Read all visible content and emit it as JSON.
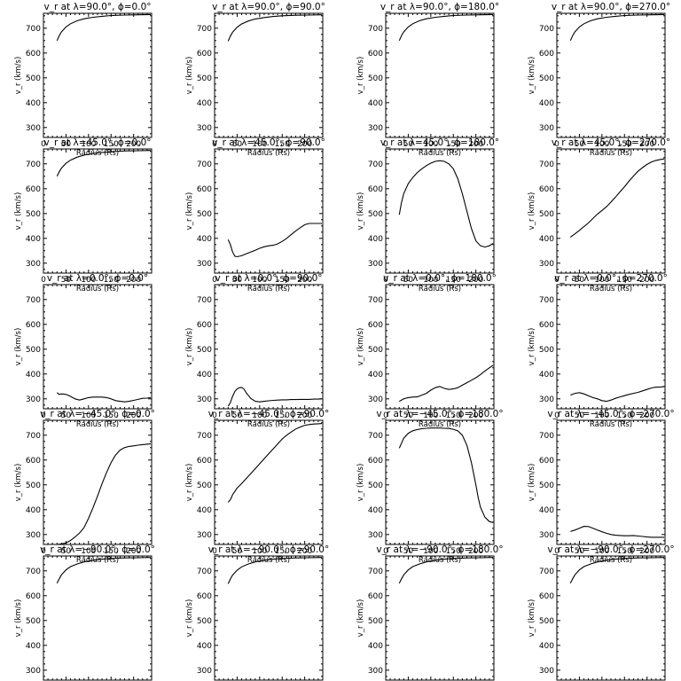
{
  "panel_axes": {
    "xlabel": "Radius (Rs)",
    "ylabel": "v_r (km/s)",
    "xlim": [
      0,
      240
    ],
    "ylim": [
      260,
      760
    ],
    "xticks": [
      0,
      50,
      100,
      150,
      200
    ],
    "yticks": [
      300,
      400,
      500,
      600,
      700
    ]
  },
  "chart_data": [
    {
      "type": "line",
      "title": "v_r at λ=90.0°, ϕ=0.0°",
      "xlabel": "Radius (Rs)",
      "ylabel": "v_r (km/s)",
      "xlim": [
        0,
        240
      ],
      "ylim": [
        260,
        760
      ],
      "series": [
        {
          "x": [
            30,
            35,
            40,
            50,
            60,
            75,
            90,
            110,
            130,
            150,
            180,
            210,
            238
          ],
          "y": [
            650,
            670,
            685,
            705,
            718,
            730,
            738,
            744,
            748,
            751,
            753,
            754,
            755
          ]
        }
      ]
    },
    {
      "type": "line",
      "title": "v_r at λ=90.0°, ϕ=90.0°",
      "xlabel": "Radius (Rs)",
      "ylabel": "v_r (km/s)",
      "xlim": [
        0,
        240
      ],
      "ylim": [
        260,
        760
      ],
      "series": [
        {
          "x": [
            30,
            35,
            40,
            50,
            60,
            75,
            90,
            110,
            130,
            150,
            180,
            210,
            238
          ],
          "y": [
            648,
            668,
            684,
            704,
            717,
            729,
            737,
            743,
            747,
            750,
            752,
            753,
            754
          ]
        }
      ]
    },
    {
      "type": "line",
      "title": "v_r at λ=90.0°, ϕ=180.0°",
      "xlabel": "Radius (Rs)",
      "ylabel": "v_r (km/s)",
      "xlim": [
        0,
        240
      ],
      "ylim": [
        260,
        760
      ],
      "series": [
        {
          "x": [
            30,
            35,
            40,
            50,
            60,
            75,
            90,
            110,
            130,
            150,
            180,
            210,
            238
          ],
          "y": [
            650,
            670,
            685,
            705,
            718,
            730,
            738,
            744,
            748,
            751,
            753,
            754,
            755
          ]
        }
      ]
    },
    {
      "type": "line",
      "title": "v_r at λ=90.0°, ϕ=270.0°",
      "xlabel": "Radius (Rs)",
      "ylabel": "v_r (km/s)",
      "xlim": [
        0,
        240
      ],
      "ylim": [
        260,
        760
      ],
      "series": [
        {
          "x": [
            30,
            35,
            40,
            50,
            60,
            75,
            90,
            110,
            130,
            150,
            180,
            210,
            238
          ],
          "y": [
            650,
            670,
            685,
            705,
            718,
            730,
            738,
            744,
            748,
            751,
            753,
            754,
            755
          ]
        }
      ]
    },
    {
      "type": "line",
      "title": "v_r at λ=45.0°, ϕ=0.0°",
      "xlabel": "Radius (Rs)",
      "ylabel": "v_r (km/s)",
      "xlim": [
        0,
        240
      ],
      "ylim": [
        260,
        760
      ],
      "series": [
        {
          "x": [
            30,
            35,
            40,
            50,
            60,
            75,
            90,
            110,
            130,
            150,
            180,
            210,
            238
          ],
          "y": [
            650,
            668,
            683,
            702,
            715,
            727,
            735,
            742,
            746,
            749,
            752,
            753,
            754
          ]
        }
      ]
    },
    {
      "type": "line",
      "title": "v_r at λ=45.0°, ϕ=90.0°",
      "xlabel": "Radius (Rs)",
      "ylabel": "v_r (km/s)",
      "xlim": [
        0,
        240
      ],
      "ylim": [
        260,
        760
      ],
      "series": [
        {
          "x": [
            30,
            35,
            40,
            45,
            50,
            60,
            70,
            80,
            90,
            100,
            110,
            120,
            130,
            140,
            150,
            160,
            170,
            180,
            190,
            200,
            210,
            220,
            238
          ],
          "y": [
            395,
            375,
            345,
            328,
            326,
            330,
            338,
            345,
            352,
            360,
            366,
            370,
            372,
            378,
            388,
            400,
            415,
            430,
            443,
            455,
            460,
            460,
            460
          ]
        }
      ]
    },
    {
      "type": "line",
      "title": "v_r at λ=45.0°, ϕ=180.0°",
      "xlabel": "Radius (Rs)",
      "ylabel": "v_r (km/s)",
      "xlim": [
        0,
        240
      ],
      "ylim": [
        260,
        760
      ],
      "series": [
        {
          "x": [
            30,
            35,
            40,
            50,
            60,
            70,
            80,
            90,
            100,
            110,
            120,
            130,
            140,
            150,
            160,
            170,
            180,
            190,
            200,
            210,
            220,
            230,
            238
          ],
          "y": [
            495,
            545,
            580,
            620,
            645,
            665,
            680,
            693,
            703,
            710,
            713,
            710,
            700,
            680,
            640,
            580,
            510,
            440,
            390,
            370,
            365,
            370,
            380
          ]
        }
      ]
    },
    {
      "type": "line",
      "title": "v_r at λ=45.0°, ϕ=270.0°",
      "xlabel": "Radius (Rs)",
      "ylabel": "v_r (km/s)",
      "xlim": [
        0,
        240
      ],
      "ylim": [
        260,
        760
      ],
      "series": [
        {
          "x": [
            30,
            40,
            50,
            60,
            70,
            80,
            90,
            100,
            110,
            120,
            130,
            140,
            150,
            160,
            170,
            180,
            190,
            200,
            210,
            220,
            230,
            238
          ],
          "y": [
            405,
            418,
            432,
            447,
            462,
            480,
            498,
            512,
            527,
            546,
            566,
            587,
            608,
            630,
            651,
            670,
            685,
            698,
            708,
            714,
            718,
            720
          ]
        }
      ]
    },
    {
      "type": "line",
      "title": "v_r at λ=0.0°, ϕ=0.0°",
      "xlabel": "Radius (Rs)",
      "ylabel": "v_r (km/s)",
      "xlim": [
        0,
        240
      ],
      "ylim": [
        260,
        760
      ],
      "series": [
        {
          "x": [
            30,
            35,
            40,
            50,
            60,
            70,
            80,
            90,
            100,
            110,
            120,
            130,
            140,
            150,
            160,
            170,
            180,
            190,
            200,
            210,
            220,
            230,
            238
          ],
          "y": [
            325,
            318,
            320,
            318,
            310,
            300,
            295,
            300,
            305,
            307,
            307,
            307,
            305,
            300,
            293,
            290,
            288,
            290,
            294,
            298,
            302,
            303,
            305
          ]
        }
      ]
    },
    {
      "type": "line",
      "title": "v_r at λ=0.0°, ϕ=90.0°",
      "xlabel": "Radius (Rs)",
      "ylabel": "v_r (km/s)",
      "xlim": [
        0,
        240
      ],
      "ylim": [
        260,
        760
      ],
      "series": [
        {
          "x": [
            30,
            35,
            40,
            45,
            50,
            55,
            60,
            65,
            70,
            80,
            90,
            100,
            110,
            120,
            130,
            140,
            150,
            160,
            170,
            180,
            190,
            200,
            210,
            220,
            230,
            238
          ],
          "y": [
            270,
            285,
            310,
            330,
            340,
            345,
            346,
            340,
            325,
            302,
            290,
            288,
            290,
            292,
            294,
            295,
            296,
            296,
            297,
            297,
            298,
            298,
            298,
            299,
            299,
            300
          ]
        }
      ]
    },
    {
      "type": "line",
      "title": "v_r at λ=0.0°, ϕ=180.0°",
      "xlabel": "Radius (Rs)",
      "ylabel": "v_r (km/s)",
      "xlim": [
        0,
        240
      ],
      "ylim": [
        260,
        760
      ],
      "series": [
        {
          "x": [
            30,
            40,
            50,
            60,
            70,
            80,
            90,
            100,
            110,
            120,
            130,
            140,
            150,
            160,
            170,
            180,
            190,
            200,
            210,
            220,
            230,
            238
          ],
          "y": [
            290,
            300,
            305,
            307,
            308,
            315,
            322,
            335,
            345,
            350,
            342,
            338,
            340,
            345,
            355,
            365,
            375,
            385,
            398,
            412,
            425,
            435
          ]
        }
      ]
    },
    {
      "type": "line",
      "title": "v_r at λ=0.0°, ϕ=270.0°",
      "xlabel": "Radius (Rs)",
      "ylabel": "v_r (km/s)",
      "xlim": [
        0,
        240
      ],
      "ylim": [
        260,
        760
      ],
      "series": [
        {
          "x": [
            30,
            40,
            50,
            60,
            70,
            80,
            90,
            100,
            110,
            120,
            130,
            140,
            150,
            160,
            170,
            180,
            190,
            200,
            210,
            220,
            230,
            238
          ],
          "y": [
            315,
            322,
            325,
            320,
            312,
            305,
            300,
            293,
            290,
            295,
            302,
            308,
            313,
            318,
            322,
            326,
            332,
            338,
            344,
            347,
            348,
            349
          ]
        }
      ]
    },
    {
      "type": "line",
      "title": "v_r at λ=−45.0°, ϕ=0.0°",
      "xlabel": "Radius (Rs)",
      "ylabel": "v_r (km/s)",
      "xlim": [
        0,
        240
      ],
      "ylim": [
        260,
        760
      ],
      "series": [
        {
          "x": [
            0,
            10,
            20,
            30,
            40,
            50,
            60,
            70,
            80,
            90,
            100,
            110,
            120,
            130,
            140,
            150,
            160,
            170,
            180,
            190,
            200,
            210,
            220,
            230,
            238
          ],
          "y": [
            260,
            260,
            260,
            260,
            262,
            266,
            276,
            290,
            306,
            328,
            365,
            408,
            455,
            505,
            550,
            590,
            620,
            640,
            650,
            655,
            657,
            660,
            662,
            664,
            665
          ]
        }
      ]
    },
    {
      "type": "line",
      "title": "v_r at λ=−45.0°, ϕ=90.0°",
      "xlabel": "Radius (Rs)",
      "ylabel": "v_r (km/s)",
      "xlim": [
        0,
        240
      ],
      "ylim": [
        260,
        760
      ],
      "series": [
        {
          "x": [
            30,
            35,
            40,
            50,
            60,
            70,
            80,
            90,
            100,
            110,
            120,
            130,
            140,
            150,
            160,
            170,
            180,
            190,
            200,
            210,
            220,
            230,
            238
          ],
          "y": [
            430,
            440,
            460,
            487,
            505,
            525,
            545,
            565,
            585,
            605,
            625,
            645,
            665,
            685,
            700,
            713,
            725,
            733,
            740,
            743,
            745,
            746,
            747
          ]
        }
      ]
    },
    {
      "type": "line",
      "title": "v_r at λ=−45.0°, ϕ=180.0°",
      "xlabel": "Radius (Rs)",
      "ylabel": "v_r (km/s)",
      "xlim": [
        0,
        240
      ],
      "ylim": [
        260,
        760
      ],
      "series": [
        {
          "x": [
            30,
            35,
            40,
            50,
            60,
            70,
            80,
            90,
            100,
            110,
            120,
            130,
            140,
            150,
            160,
            170,
            180,
            190,
            200,
            205,
            210,
            220,
            230,
            238
          ],
          "y": [
            648,
            668,
            688,
            708,
            718,
            723,
            726,
            728,
            729,
            729,
            729,
            728,
            727,
            724,
            718,
            700,
            660,
            590,
            500,
            450,
            410,
            370,
            352,
            348
          ]
        }
      ]
    },
    {
      "type": "line",
      "title": "v_r at λ=−45.0°, ϕ=270.0°",
      "xlabel": "Radius (Rs)",
      "ylabel": "v_r (km/s)",
      "xlim": [
        0,
        240
      ],
      "ylim": [
        260,
        760
      ],
      "series": [
        {
          "x": [
            30,
            40,
            50,
            60,
            70,
            80,
            90,
            100,
            110,
            120,
            130,
            140,
            150,
            160,
            170,
            180,
            190,
            200,
            210,
            220,
            230,
            238
          ],
          "y": [
            312,
            318,
            325,
            333,
            332,
            325,
            318,
            311,
            305,
            300,
            297,
            296,
            295,
            295,
            296,
            294,
            292,
            290,
            289,
            289,
            289,
            289
          ]
        }
      ]
    },
    {
      "type": "line",
      "title": "v_r at λ=−90.0°, ϕ=0.0°",
      "xlabel": "Radius (Rs)",
      "ylabel": "v_r (km/s)",
      "xlim": [
        0,
        240
      ],
      "ylim": [
        260,
        760
      ],
      "series": [
        {
          "x": [
            30,
            35,
            40,
            50,
            60,
            75,
            90,
            110,
            130,
            150,
            180,
            210,
            238
          ],
          "y": [
            650,
            668,
            684,
            704,
            717,
            728,
            736,
            743,
            747,
            750,
            752,
            753,
            754
          ]
        }
      ]
    },
    {
      "type": "line",
      "title": "v_r at λ=−90.0°, ϕ=90.0°",
      "xlabel": "Radius (Rs)",
      "ylabel": "v_r (km/s)",
      "xlim": [
        0,
        240
      ],
      "ylim": [
        260,
        760
      ],
      "series": [
        {
          "x": [
            30,
            35,
            40,
            50,
            60,
            75,
            90,
            110,
            130,
            150,
            180,
            210,
            238
          ],
          "y": [
            648,
            667,
            683,
            703,
            716,
            728,
            736,
            743,
            747,
            750,
            752,
            753,
            754
          ]
        }
      ]
    },
    {
      "type": "line",
      "title": "v_r at λ=−90.0°, ϕ=180.0°",
      "xlabel": "Radius (Rs)",
      "ylabel": "v_r (km/s)",
      "xlim": [
        0,
        240
      ],
      "ylim": [
        260,
        760
      ],
      "series": [
        {
          "x": [
            30,
            35,
            40,
            50,
            60,
            75,
            90,
            110,
            130,
            150,
            180,
            210,
            238
          ],
          "y": [
            650,
            668,
            684,
            704,
            717,
            728,
            736,
            743,
            747,
            750,
            752,
            753,
            754
          ]
        }
      ]
    },
    {
      "type": "line",
      "title": "v_r at λ=−90.0°, ϕ=270.0°",
      "xlabel": "Radius (Rs)",
      "ylabel": "v_r (km/s)",
      "xlim": [
        0,
        240
      ],
      "ylim": [
        260,
        760
      ],
      "series": [
        {
          "x": [
            30,
            35,
            40,
            50,
            60,
            75,
            90,
            110,
            130,
            150,
            180,
            210,
            238
          ],
          "y": [
            650,
            668,
            684,
            704,
            717,
            728,
            736,
            743,
            747,
            750,
            752,
            753,
            754
          ]
        }
      ]
    }
  ]
}
